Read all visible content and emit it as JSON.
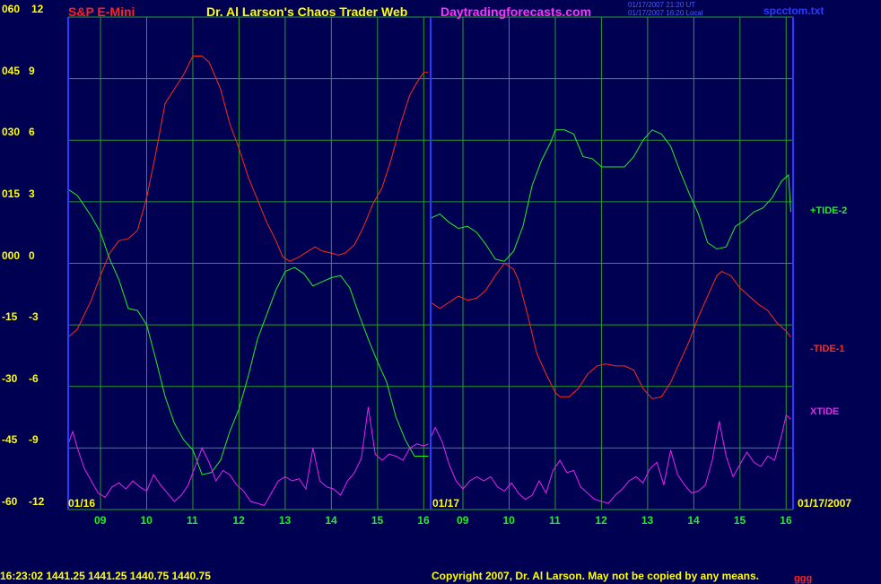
{
  "header": {
    "symbol": "S&P E-Mini",
    "title": "Dr. Al Larson's Chaos Trader Web",
    "site": "Daytradingforecasts.com",
    "utc_time": "01/17/2007 21:20 UT",
    "local_time": "01/17/2007 16:20 Local",
    "file": "spcctom.txt"
  },
  "footer": {
    "quote": "16:23:02  1441.25 1441.25 1440.75 1440.75",
    "copyright": "Copyright 2007, Dr. Al Larson. May not be copied by any means.",
    "corner_mark": "ggg"
  },
  "colors": {
    "background": "#000053",
    "grid": "#2b9b2b",
    "frame": "#2a3bff",
    "label_yellow": "#ffff00",
    "tide1": "#ff2a1a",
    "tide2": "#22ee22",
    "xtide": "#ee22ee"
  },
  "chart_data": {
    "type": "line",
    "left_axis_labels": [
      "060",
      "045",
      "030",
      "015",
      "000",
      "-15",
      "-30",
      "-45",
      "-60"
    ],
    "right_axis_labels": [
      "12",
      "9",
      "6",
      "3",
      "0",
      "-3",
      "-6",
      "-9",
      "-12"
    ],
    "y_range": [
      -12,
      12
    ],
    "x_range_hours": [
      8.3,
      16.15
    ],
    "x_ticks": [
      "09",
      "10",
      "11",
      "12",
      "13",
      "14",
      "15",
      "16",
      "09",
      "10",
      "11",
      "12",
      "13",
      "14",
      "15",
      "16"
    ],
    "date_labels": [
      "01/16",
      "01/17",
      "01/17/2007"
    ],
    "grid": true,
    "legend_position": "right",
    "series": [
      {
        "name": "-TIDE-1",
        "color": "#ff2a1a",
        "day": 1,
        "points": [
          [
            8.3,
            -3.6
          ],
          [
            8.5,
            -3.2
          ],
          [
            8.8,
            -1.8
          ],
          [
            9.0,
            -0.6
          ],
          [
            9.2,
            0.5
          ],
          [
            9.4,
            1.1
          ],
          [
            9.6,
            1.2
          ],
          [
            9.8,
            1.6
          ],
          [
            10.0,
            3.2
          ],
          [
            10.2,
            5.4
          ],
          [
            10.4,
            7.8
          ],
          [
            10.6,
            8.5
          ],
          [
            10.8,
            9.2
          ],
          [
            11.0,
            10.1
          ],
          [
            11.2,
            10.1
          ],
          [
            11.35,
            9.8
          ],
          [
            11.6,
            8.5
          ],
          [
            11.8,
            6.8
          ],
          [
            12.0,
            5.6
          ],
          [
            12.2,
            4.2
          ],
          [
            12.4,
            3.1
          ],
          [
            12.6,
            2.0
          ],
          [
            12.8,
            1.1
          ],
          [
            12.95,
            0.3
          ],
          [
            13.1,
            0.1
          ],
          [
            13.3,
            0.3
          ],
          [
            13.5,
            0.6
          ],
          [
            13.65,
            0.8
          ],
          [
            13.8,
            0.6
          ],
          [
            14.0,
            0.5
          ],
          [
            14.15,
            0.4
          ],
          [
            14.3,
            0.5
          ],
          [
            14.5,
            0.9
          ],
          [
            14.7,
            1.8
          ],
          [
            14.9,
            2.9
          ],
          [
            15.1,
            3.7
          ],
          [
            15.3,
            5.1
          ],
          [
            15.5,
            6.8
          ],
          [
            15.7,
            8.2
          ],
          [
            15.85,
            8.8
          ],
          [
            16.0,
            9.3
          ],
          [
            16.1,
            9.3
          ]
        ]
      },
      {
        "name": "-TIDE-1",
        "color": "#ff2a1a",
        "day": 2,
        "points": [
          [
            8.3,
            -1.9
          ],
          [
            8.5,
            -2.2
          ],
          [
            8.7,
            -1.9
          ],
          [
            8.9,
            -1.6
          ],
          [
            9.1,
            -1.8
          ],
          [
            9.3,
            -1.7
          ],
          [
            9.5,
            -1.3
          ],
          [
            9.7,
            -0.6
          ],
          [
            9.9,
            0.0
          ],
          [
            10.1,
            -0.3
          ],
          [
            10.2,
            -0.8
          ],
          [
            10.4,
            -2.5
          ],
          [
            10.6,
            -4.4
          ],
          [
            10.8,
            -5.4
          ],
          [
            11.0,
            -6.3
          ],
          [
            11.1,
            -6.5
          ],
          [
            11.3,
            -6.5
          ],
          [
            11.5,
            -6.1
          ],
          [
            11.7,
            -5.4
          ],
          [
            11.9,
            -5.0
          ],
          [
            12.1,
            -4.9
          ],
          [
            12.3,
            -5.0
          ],
          [
            12.5,
            -5.0
          ],
          [
            12.7,
            -5.2
          ],
          [
            12.9,
            -6.1
          ],
          [
            13.1,
            -6.6
          ],
          [
            13.3,
            -6.5
          ],
          [
            13.5,
            -5.8
          ],
          [
            13.7,
            -4.8
          ],
          [
            13.9,
            -3.8
          ],
          [
            14.1,
            -2.6
          ],
          [
            14.3,
            -1.6
          ],
          [
            14.5,
            -0.6
          ],
          [
            14.6,
            -0.4
          ],
          [
            14.8,
            -0.6
          ],
          [
            15.0,
            -1.2
          ],
          [
            15.2,
            -1.6
          ],
          [
            15.4,
            -2.0
          ],
          [
            15.6,
            -2.3
          ],
          [
            15.8,
            -2.9
          ],
          [
            16.0,
            -3.3
          ],
          [
            16.1,
            -3.6
          ]
        ]
      },
      {
        "name": "+TIDE-2",
        "color": "#22ee22",
        "day": 1,
        "points": [
          [
            8.3,
            3.6
          ],
          [
            8.5,
            3.3
          ],
          [
            8.8,
            2.3
          ],
          [
            9.0,
            1.5
          ],
          [
            9.2,
            0.2
          ],
          [
            9.4,
            -0.8
          ],
          [
            9.6,
            -2.2
          ],
          [
            9.8,
            -2.3
          ],
          [
            10.0,
            -3.0
          ],
          [
            10.2,
            -4.7
          ],
          [
            10.4,
            -6.5
          ],
          [
            10.6,
            -7.8
          ],
          [
            10.8,
            -8.6
          ],
          [
            11.0,
            -9.1
          ],
          [
            11.2,
            -10.3
          ],
          [
            11.4,
            -10.2
          ],
          [
            11.6,
            -9.6
          ],
          [
            11.8,
            -8.2
          ],
          [
            12.0,
            -7.1
          ],
          [
            12.2,
            -5.5
          ],
          [
            12.4,
            -3.7
          ],
          [
            12.6,
            -2.5
          ],
          [
            12.8,
            -1.3
          ],
          [
            13.0,
            -0.4
          ],
          [
            13.2,
            -0.2
          ],
          [
            13.4,
            -0.5
          ],
          [
            13.6,
            -1.1
          ],
          [
            13.8,
            -0.9
          ],
          [
            14.0,
            -0.7
          ],
          [
            14.2,
            -0.6
          ],
          [
            14.4,
            -1.2
          ],
          [
            14.6,
            -2.5
          ],
          [
            14.8,
            -3.7
          ],
          [
            15.0,
            -4.8
          ],
          [
            15.2,
            -5.8
          ],
          [
            15.4,
            -7.5
          ],
          [
            15.6,
            -8.6
          ],
          [
            15.8,
            -9.4
          ],
          [
            16.0,
            -9.4
          ],
          [
            16.1,
            -9.4
          ]
        ]
      },
      {
        "name": "+TIDE-2",
        "color": "#22ee22",
        "day": 2,
        "points": [
          [
            8.3,
            2.2
          ],
          [
            8.5,
            2.4
          ],
          [
            8.7,
            2.0
          ],
          [
            8.9,
            1.7
          ],
          [
            9.1,
            1.8
          ],
          [
            9.3,
            1.5
          ],
          [
            9.5,
            0.9
          ],
          [
            9.7,
            0.2
          ],
          [
            9.9,
            0.1
          ],
          [
            10.1,
            0.6
          ],
          [
            10.3,
            1.8
          ],
          [
            10.5,
            3.8
          ],
          [
            10.7,
            5.0
          ],
          [
            10.9,
            5.9
          ],
          [
            11.0,
            6.5
          ],
          [
            11.2,
            6.5
          ],
          [
            11.4,
            6.3
          ],
          [
            11.6,
            5.2
          ],
          [
            11.8,
            5.1
          ],
          [
            12.0,
            4.7
          ],
          [
            12.2,
            4.7
          ],
          [
            12.5,
            4.7
          ],
          [
            12.7,
            5.2
          ],
          [
            12.9,
            6.0
          ],
          [
            13.1,
            6.5
          ],
          [
            13.3,
            6.3
          ],
          [
            13.5,
            5.7
          ],
          [
            13.7,
            4.5
          ],
          [
            13.9,
            3.4
          ],
          [
            14.1,
            2.4
          ],
          [
            14.3,
            1.0
          ],
          [
            14.5,
            0.7
          ],
          [
            14.7,
            0.8
          ],
          [
            14.9,
            1.8
          ],
          [
            15.1,
            2.1
          ],
          [
            15.3,
            2.5
          ],
          [
            15.5,
            2.7
          ],
          [
            15.7,
            3.2
          ],
          [
            15.9,
            4.0
          ],
          [
            16.05,
            4.3
          ],
          [
            16.1,
            2.5
          ]
        ]
      },
      {
        "name": "XTIDE",
        "color": "#ee22ee",
        "day": 1,
        "points": [
          [
            8.3,
            -8.8
          ],
          [
            8.4,
            -8.2
          ],
          [
            8.5,
            -9.0
          ],
          [
            8.65,
            -10.0
          ],
          [
            8.8,
            -10.6
          ],
          [
            8.95,
            -11.2
          ],
          [
            9.1,
            -11.4
          ],
          [
            9.25,
            -10.9
          ],
          [
            9.4,
            -10.7
          ],
          [
            9.55,
            -11.0
          ],
          [
            9.7,
            -10.6
          ],
          [
            9.85,
            -10.9
          ],
          [
            10.0,
            -11.1
          ],
          [
            10.15,
            -10.3
          ],
          [
            10.3,
            -10.8
          ],
          [
            10.45,
            -11.2
          ],
          [
            10.6,
            -11.6
          ],
          [
            10.75,
            -11.3
          ],
          [
            10.9,
            -10.8
          ],
          [
            11.05,
            -9.9
          ],
          [
            11.2,
            -9.0
          ],
          [
            11.35,
            -9.7
          ],
          [
            11.5,
            -10.6
          ],
          [
            11.65,
            -10.1
          ],
          [
            11.8,
            -10.3
          ],
          [
            11.95,
            -10.8
          ],
          [
            12.1,
            -11.1
          ],
          [
            12.25,
            -11.6
          ],
          [
            12.4,
            -11.7
          ],
          [
            12.55,
            -11.8
          ],
          [
            12.7,
            -11.2
          ],
          [
            12.85,
            -10.6
          ],
          [
            13.0,
            -10.4
          ],
          [
            13.15,
            -10.6
          ],
          [
            13.3,
            -10.5
          ],
          [
            13.45,
            -11.0
          ],
          [
            13.6,
            -9.0
          ],
          [
            13.75,
            -10.6
          ],
          [
            13.9,
            -10.9
          ],
          [
            14.05,
            -11.0
          ],
          [
            14.2,
            -11.3
          ],
          [
            14.35,
            -10.6
          ],
          [
            14.5,
            -10.2
          ],
          [
            14.65,
            -9.5
          ],
          [
            14.8,
            -7.0
          ],
          [
            14.95,
            -9.3
          ],
          [
            15.1,
            -9.6
          ],
          [
            15.25,
            -9.3
          ],
          [
            15.4,
            -9.4
          ],
          [
            15.55,
            -9.6
          ],
          [
            15.7,
            -9.0
          ],
          [
            15.85,
            -8.8
          ],
          [
            16.0,
            -8.9
          ],
          [
            16.1,
            -8.8
          ]
        ]
      },
      {
        "name": "XTIDE",
        "color": "#ee22ee",
        "day": 2,
        "points": [
          [
            8.3,
            -8.5
          ],
          [
            8.4,
            -8.0
          ],
          [
            8.55,
            -8.7
          ],
          [
            8.7,
            -9.8
          ],
          [
            8.85,
            -10.6
          ],
          [
            9.0,
            -11.0
          ],
          [
            9.15,
            -10.6
          ],
          [
            9.3,
            -10.4
          ],
          [
            9.45,
            -10.6
          ],
          [
            9.6,
            -10.4
          ],
          [
            9.75,
            -10.9
          ],
          [
            9.9,
            -11.1
          ],
          [
            10.05,
            -10.7
          ],
          [
            10.2,
            -11.2
          ],
          [
            10.35,
            -11.5
          ],
          [
            10.5,
            -11.3
          ],
          [
            10.65,
            -10.6
          ],
          [
            10.8,
            -11.2
          ],
          [
            10.95,
            -10.1
          ],
          [
            11.1,
            -9.6
          ],
          [
            11.25,
            -10.2
          ],
          [
            11.4,
            -10.1
          ],
          [
            11.55,
            -10.9
          ],
          [
            11.7,
            -11.2
          ],
          [
            11.85,
            -11.5
          ],
          [
            12.0,
            -11.6
          ],
          [
            12.15,
            -11.7
          ],
          [
            12.3,
            -11.3
          ],
          [
            12.45,
            -11.0
          ],
          [
            12.6,
            -10.6
          ],
          [
            12.75,
            -10.4
          ],
          [
            12.9,
            -10.7
          ],
          [
            13.05,
            -10.0
          ],
          [
            13.2,
            -9.7
          ],
          [
            13.35,
            -10.8
          ],
          [
            13.5,
            -9.1
          ],
          [
            13.65,
            -10.3
          ],
          [
            13.8,
            -10.8
          ],
          [
            13.95,
            -11.2
          ],
          [
            14.1,
            -11.1
          ],
          [
            14.25,
            -10.8
          ],
          [
            14.4,
            -9.6
          ],
          [
            14.55,
            -7.7
          ],
          [
            14.7,
            -9.4
          ],
          [
            14.85,
            -10.4
          ],
          [
            15.0,
            -9.8
          ],
          [
            15.15,
            -9.2
          ],
          [
            15.3,
            -9.7
          ],
          [
            15.45,
            -9.9
          ],
          [
            15.6,
            -9.4
          ],
          [
            15.75,
            -9.6
          ],
          [
            15.9,
            -8.4
          ],
          [
            16.0,
            -7.4
          ],
          [
            16.1,
            -7.6
          ]
        ]
      }
    ]
  },
  "legend": {
    "tide2": "+TIDE-2",
    "tide1": "-TIDE-1",
    "xtide": "XTIDE"
  }
}
